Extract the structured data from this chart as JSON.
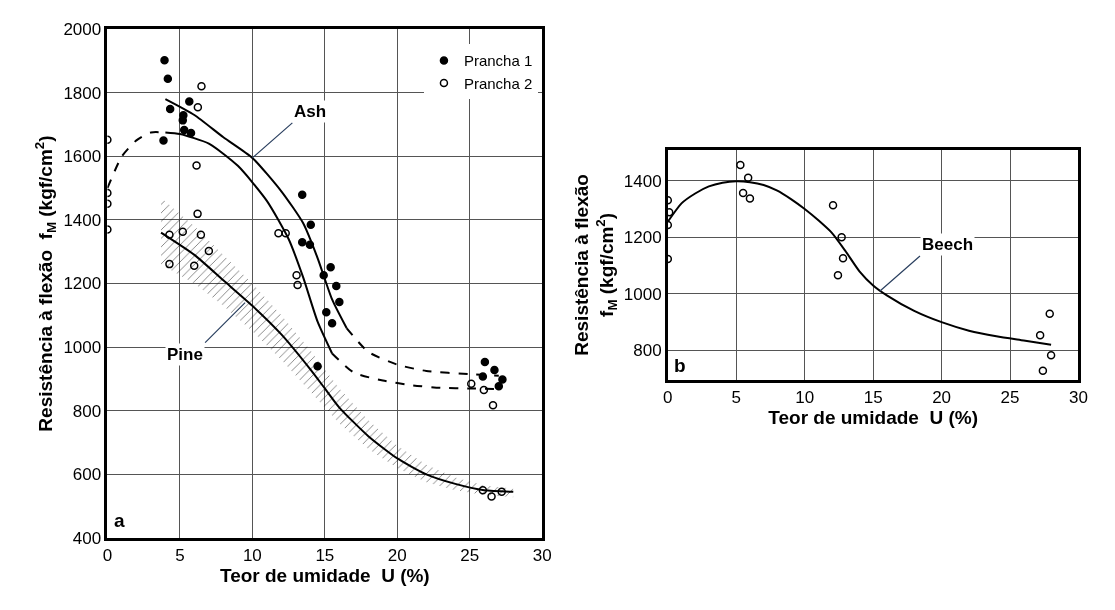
{
  "chart_data": [
    {
      "type": "scatter",
      "xlabel": "Teor de umidade  U (%)",
      "ylabel": "Resistência à flexão  f$_{M}$ (kgf/cm$^{2}$)",
      "xlim": [
        0,
        30
      ],
      "ylim": [
        400,
        2000
      ],
      "xticks": [
        0,
        5,
        10,
        15,
        20,
        25,
        30
      ],
      "yticks": [
        400,
        600,
        800,
        1000,
        1200,
        1400,
        1600,
        1800,
        2000
      ],
      "grid": true,
      "legend": "top right",
      "annotations": [
        {
          "text": "Ash",
          "x": 10,
          "y": 1595
        },
        {
          "text": "Pine",
          "x": 9.5,
          "y": 1140
        },
        "a"
      ],
      "series": [
        {
          "name": "Prancha 1",
          "marker": "circle",
          "color": "#000000",
          "x": [
            3.94,
            4.17,
            4.33,
            5.65,
            5.24,
            5.2,
            5.3,
            5.77,
            3.87,
            13.44,
            14.03,
            13.44,
            13.97,
            15.4,
            14.92,
            15.79,
            16.0,
            15.1,
            15.5,
            14.5,
            26.04,
            26.7,
            25.9,
            27.25,
            27.0
          ],
          "values": [
            1902,
            1844,
            1749,
            1772,
            1729,
            1713,
            1683,
            1673,
            1650,
            1479,
            1385,
            1330,
            1322,
            1251,
            1226,
            1192,
            1142,
            1110,
            1075,
            940,
            953,
            928,
            908,
            898,
            877
          ]
        },
        {
          "name": "Prancha 2",
          "marker": "circle-open",
          "color": "#000000",
          "x": [
            6.49,
            6.24,
            6.15,
            6.22,
            11.8,
            12.3,
            13.05,
            13.12,
            0,
            0,
            0,
            0,
            25.1,
            25.97,
            26.6,
            4.28,
            5.2,
            6.45,
            4.28,
            5.99,
            7.0,
            25.9,
            26.5,
            27.2
          ],
          "values": [
            1820,
            1754,
            1571,
            1419,
            1358,
            1358,
            1226,
            1195,
            1652,
            1485,
            1451,
            1370,
            885,
            865,
            817,
            1353,
            1363,
            1353,
            1261,
            1256,
            1302,
            550,
            530,
            545
          ]
        },
        {
          "type": "line",
          "line_style": "solid",
          "color": "#000000",
          "x": [
            4,
            6,
            8,
            10,
            12,
            13.5,
            14.5,
            15.5,
            16.5
          ],
          "values": [
            1780,
            1730,
            1660,
            1595,
            1490,
            1390,
            1280,
            1150,
            1060
          ]
        },
        {
          "type": "line",
          "line_style": "dashed",
          "color": "#000000",
          "x": [
            16.5,
            18,
            20,
            22,
            25,
            27
          ],
          "values": [
            1060,
            985,
            945,
            925,
            915,
            910
          ]
        },
        {
          "type": "line",
          "line_style": "dashed",
          "color": "#000000",
          "x": [
            0,
            1,
            2,
            3,
            4
          ],
          "values": [
            1500,
            1600,
            1650,
            1675,
            1675
          ]
        },
        {
          "type": "line",
          "line_style": "solid",
          "color": "#000000",
          "x": [
            4,
            5,
            7,
            9,
            11,
            12.5,
            13.5,
            14.5,
            15.5
          ],
          "values": [
            1675,
            1670,
            1640,
            1570,
            1460,
            1340,
            1220,
            1080,
            980
          ]
        },
        {
          "type": "line",
          "line_style": "dashed",
          "color": "#000000",
          "x": [
            15.5,
            17,
            19,
            21,
            23,
            25,
            27
          ],
          "values": [
            980,
            920,
            895,
            880,
            872,
            870,
            868
          ]
        },
        {
          "type": "line",
          "line_style": "solid",
          "color": "#000000",
          "x": [
            3.7,
            6,
            8,
            10,
            12,
            14,
            15,
            16,
            18,
            20,
            22,
            24,
            26,
            28
          ],
          "values": [
            1360,
            1290,
            1210,
            1130,
            1040,
            930,
            870,
            810,
            720,
            650,
            600,
            570,
            550,
            545
          ],
          "upper": [
            1470,
            1380,
            1290,
            1200,
            1100,
            990,
            930,
            870,
            770,
            690,
            630,
            590,
            565,
            555
          ],
          "lower": [
            1260,
            1200,
            1130,
            1050,
            960,
            860,
            810,
            760,
            680,
            620,
            575,
            550,
            535,
            528
          ]
        }
      ]
    },
    {
      "type": "scatter",
      "xlabel": "Teor de umidade  U (%)",
      "ylabel": "Resistência à flexão\nf$_{M}$ (kgf/cm$^{2}$)",
      "xlim": [
        0,
        30
      ],
      "ylim": [
        695,
        1510
      ],
      "xticks": [
        0,
        5,
        10,
        15,
        20,
        25,
        30
      ],
      "yticks": [
        800,
        1000,
        1200,
        1400
      ],
      "grid": true,
      "annotations": [
        {
          "text": "Beech",
          "x": 15.5,
          "y": 1010
        },
        "b"
      ],
      "series": [
        {
          "marker": "circle-open",
          "color": "#000000",
          "x": [
            0,
            0.1,
            0,
            0,
            5.3,
            5.87,
            5.5,
            6.0,
            12.07,
            12.7,
            12.8,
            12.43,
            27.2,
            27.9,
            27.4,
            28.0
          ],
          "values": [
            1331,
            1289,
            1244,
            1123,
            1456,
            1411,
            1357,
            1337,
            1313,
            1200,
            1126,
            1066,
            854,
            930,
            728,
            783
          ]
        },
        {
          "type": "line",
          "line_style": "solid",
          "color": "#000000",
          "x": [
            0,
            1,
            2,
            3,
            4,
            5,
            6,
            7,
            8,
            9,
            10,
            11,
            12,
            13,
            14,
            15,
            16,
            18,
            20,
            22,
            24,
            26,
            28
          ],
          "values": [
            1255,
            1320,
            1355,
            1380,
            1393,
            1398,
            1395,
            1385,
            1365,
            1335,
            1300,
            1260,
            1215,
            1150,
            1080,
            1030,
            995,
            940,
            900,
            870,
            850,
            835,
            820
          ]
        }
      ]
    }
  ]
}
